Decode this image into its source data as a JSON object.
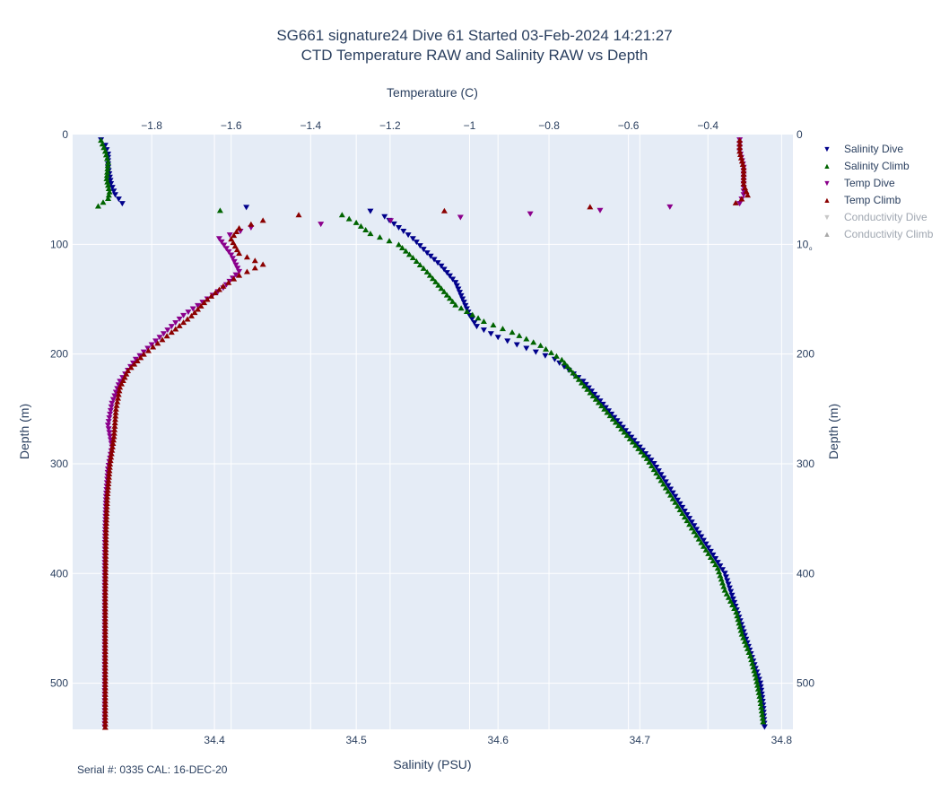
{
  "title_line1": "SG661 signature24 Dive 61 Started 03-Feb-2024 14:21:27",
  "title_line2": "CTD Temperature RAW and Salinity RAW vs Depth",
  "footer": "Serial #: 0335  CAL: 16-DEC-20",
  "colors": {
    "plot_bg": "#e5ecf6",
    "grid": "#ffffff",
    "salinity_dive": "#00008b",
    "salinity_climb": "#006400",
    "temp_dive": "#8b008b",
    "temp_climb": "#8b0000",
    "cond_dive": "#c8c8c8",
    "cond_climb": "#a9a9a9"
  },
  "legend": [
    {
      "label": "Salinity Dive",
      "color": "#00008b",
      "marker": "triangle-down",
      "visible": true
    },
    {
      "label": "Salinity Climb",
      "color": "#006400",
      "marker": "triangle-up",
      "visible": true
    },
    {
      "label": "Temp Dive",
      "color": "#8b008b",
      "marker": "triangle-down",
      "visible": true
    },
    {
      "label": "Temp Climb",
      "color": "#8b0000",
      "marker": "triangle-up",
      "visible": true
    },
    {
      "label": "Conductivity Dive",
      "color": "#c8c8c8",
      "marker": "triangle-down",
      "visible": false
    },
    {
      "label": "Conductivity Climb",
      "color": "#a9a9a9",
      "marker": "triangle-up",
      "visible": false
    }
  ],
  "chart_data": {
    "type": "scatter",
    "xlabel_bottom": "Salinity (PSU)",
    "xlabel_top": "Temperature (C)",
    "ylabel_left": "Depth (m)",
    "ylabel_right": "Depth (m)",
    "salinity_range": [
      34.3,
      34.808
    ],
    "temperature_range": [
      -1.999,
      -0.186
    ],
    "depth_range": [
      0,
      542
    ],
    "depth_reversed": true,
    "salinity_ticks": [
      "34.4",
      "34.5",
      "34.6",
      "34.7",
      "34.8"
    ],
    "temperature_ticks": [
      "−1.8",
      "−1.6",
      "−1.4",
      "−1.2",
      "−1",
      "−0.8",
      "−0.6",
      "−0.4"
    ],
    "depth_ticks": [
      "0",
      "100",
      "200",
      "300",
      "400",
      "500"
    ],
    "depth_ticks_right": [
      "0",
      "10ₒ",
      "200",
      "300",
      "400",
      "500"
    ],
    "grid": true,
    "legend_position": "right",
    "series": [
      {
        "name": "Salinity Dive",
        "axis": "salinity",
        "marker": "down",
        "points": [
          [
            34.32,
            5
          ],
          [
            34.323,
            10
          ],
          [
            34.325,
            18
          ],
          [
            34.325,
            30
          ],
          [
            34.327,
            45
          ],
          [
            34.33,
            55
          ],
          [
            34.335,
            63
          ],
          [
            34.51,
            70
          ],
          [
            34.52,
            75
          ],
          [
            34.53,
            85
          ],
          [
            34.54,
            95
          ],
          [
            34.55,
            108
          ],
          [
            34.56,
            120
          ],
          [
            34.57,
            135
          ],
          [
            34.575,
            150
          ],
          [
            34.58,
            165
          ],
          [
            34.585,
            175
          ],
          [
            34.6,
            185
          ],
          [
            34.62,
            195
          ],
          [
            34.64,
            205
          ],
          [
            34.65,
            215
          ],
          [
            34.66,
            225
          ],
          [
            34.67,
            240
          ],
          [
            34.68,
            255
          ],
          [
            34.69,
            270
          ],
          [
            34.7,
            285
          ],
          [
            34.71,
            300
          ],
          [
            34.72,
            320
          ],
          [
            34.73,
            340
          ],
          [
            34.74,
            360
          ],
          [
            34.75,
            380
          ],
          [
            34.76,
            400
          ],
          [
            34.765,
            420
          ],
          [
            34.77,
            440
          ],
          [
            34.775,
            460
          ],
          [
            34.78,
            480
          ],
          [
            34.785,
            500
          ],
          [
            34.787,
            520
          ],
          [
            34.788,
            540
          ]
        ]
      },
      {
        "name": "Salinity Climb",
        "axis": "salinity",
        "marker": "up",
        "points": [
          [
            34.32,
            5
          ],
          [
            34.323,
            15
          ],
          [
            34.325,
            25
          ],
          [
            34.324,
            40
          ],
          [
            34.326,
            52
          ],
          [
            34.325,
            58
          ],
          [
            34.318,
            65
          ],
          [
            34.49,
            73
          ],
          [
            34.5,
            80
          ],
          [
            34.51,
            90
          ],
          [
            34.53,
            100
          ],
          [
            34.54,
            112
          ],
          [
            34.55,
            125
          ],
          [
            34.56,
            140
          ],
          [
            34.57,
            155
          ],
          [
            34.59,
            170
          ],
          [
            34.61,
            180
          ],
          [
            34.63,
            192
          ],
          [
            34.645,
            205
          ],
          [
            34.655,
            220
          ],
          [
            34.665,
            235
          ],
          [
            34.675,
            250
          ],
          [
            34.685,
            265
          ],
          [
            34.695,
            280
          ],
          [
            34.705,
            295
          ],
          [
            34.715,
            315
          ],
          [
            34.725,
            335
          ],
          [
            34.735,
            355
          ],
          [
            34.745,
            375
          ],
          [
            34.755,
            395
          ],
          [
            34.76,
            415
          ],
          [
            34.768,
            435
          ],
          [
            34.772,
            455
          ],
          [
            34.778,
            475
          ],
          [
            34.782,
            495
          ],
          [
            34.785,
            515
          ],
          [
            34.787,
            535
          ]
        ]
      },
      {
        "name": "Temp Dive",
        "axis": "temperature",
        "marker": "down",
        "points": [
          [
            -0.32,
            5
          ],
          [
            -0.32,
            15
          ],
          [
            -0.31,
            30
          ],
          [
            -0.31,
            45
          ],
          [
            -0.31,
            55
          ],
          [
            -0.32,
            63
          ],
          [
            -1.55,
            85
          ],
          [
            -1.63,
            95
          ],
          [
            -1.6,
            110
          ],
          [
            -1.58,
            125
          ],
          [
            -1.62,
            140
          ],
          [
            -1.66,
            150
          ],
          [
            -1.72,
            165
          ],
          [
            -1.78,
            185
          ],
          [
            -1.84,
            205
          ],
          [
            -1.88,
            225
          ],
          [
            -1.9,
            245
          ],
          [
            -1.91,
            265
          ],
          [
            -1.9,
            285
          ],
          [
            -1.91,
            305
          ],
          [
            -1.915,
            330
          ],
          [
            -1.917,
            360
          ],
          [
            -1.918,
            390
          ],
          [
            -1.918,
            420
          ],
          [
            -1.918,
            450
          ],
          [
            -1.918,
            480
          ],
          [
            -1.918,
            510
          ],
          [
            -1.918,
            540
          ]
        ]
      },
      {
        "name": "Temp Climb",
        "axis": "temperature",
        "marker": "up",
        "points": [
          [
            -0.32,
            5
          ],
          [
            -0.32,
            15
          ],
          [
            -0.31,
            30
          ],
          [
            -0.31,
            45
          ],
          [
            -0.3,
            55
          ],
          [
            -0.33,
            62
          ],
          [
            -1.43,
            73
          ],
          [
            -1.52,
            78
          ],
          [
            -1.58,
            85
          ],
          [
            -1.6,
            95
          ],
          [
            -1.58,
            108
          ],
          [
            -1.52,
            118
          ],
          [
            -1.58,
            128
          ],
          [
            -1.62,
            138
          ],
          [
            -1.66,
            150
          ],
          [
            -1.7,
            165
          ],
          [
            -1.75,
            180
          ],
          [
            -1.82,
            200
          ],
          [
            -1.86,
            215
          ],
          [
            -1.88,
            230
          ],
          [
            -1.89,
            250
          ],
          [
            -1.895,
            275
          ],
          [
            -1.905,
            300
          ],
          [
            -1.912,
            330
          ],
          [
            -1.915,
            360
          ],
          [
            -1.916,
            390
          ],
          [
            -1.917,
            420
          ],
          [
            -1.917,
            450
          ],
          [
            -1.917,
            480
          ],
          [
            -1.917,
            510
          ],
          [
            -1.917,
            540
          ]
        ]
      }
    ]
  }
}
